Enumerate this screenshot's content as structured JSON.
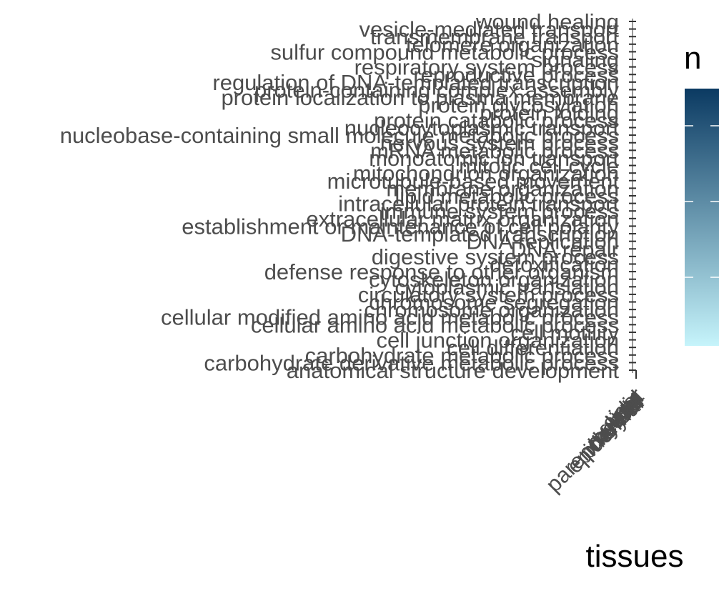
{
  "chart_data": {
    "type": "heatmap",
    "title": "",
    "xlabel": "tissues",
    "ylabel": "",
    "legend": {
      "title": "n",
      "placement": "right",
      "scale": "continuous"
    },
    "colors": {
      "low": "#c6f4fb",
      "high": "#0b3a62"
    },
    "x_categories": [
      "cigar",
      "glia",
      "gland",
      "liver",
      "muscle",
      "neural",
      "parenchymal",
      "pharynx",
      "epidermal"
    ],
    "y_categories": [
      "anatomical structure development",
      "carbohydrate derivative metabolic process",
      "carbohydrate metabolic process",
      "cell differentiation",
      "cell junction organization",
      "cell motility",
      "cellular amino acid metabolic process",
      "cellular modified amino acid metabolic process",
      "chromosome organization",
      "chromosome segregation",
      "circulatory system process",
      "cytoplasmic translation",
      "cytoskeleton organization",
      "defense response to other organism",
      "detoxification",
      "digestive system process",
      "DNA repair",
      "DNA replication",
      "DNA-templated transcription",
      "establishment or maintenance of cell polarity",
      "extracellular matrix organization",
      "immune system process",
      "intracellular protein transport",
      "lipid metabolic process",
      "membrane organization",
      "microtubule-based movement",
      "mitochondrion organization",
      "mitotic cell cycle",
      "monoatomic ion transport",
      "mRNA metabolic process",
      "nervous system process",
      "nucleobase-containing small molecule metabolic process",
      "nucleocytoplasmic transport",
      "protein catabolic process",
      "protein folding",
      "protein glycosylation",
      "protein localization to plasma membrane",
      "protein-containing complex assembly",
      "regulation of DNA-templated transcription",
      "reproductive process",
      "respiratory system process",
      "signaling",
      "sulfur compound metabolic process",
      "telomere organization",
      "transmembrane transport",
      "vesicle-mediated transport",
      "wound healing"
    ]
  }
}
